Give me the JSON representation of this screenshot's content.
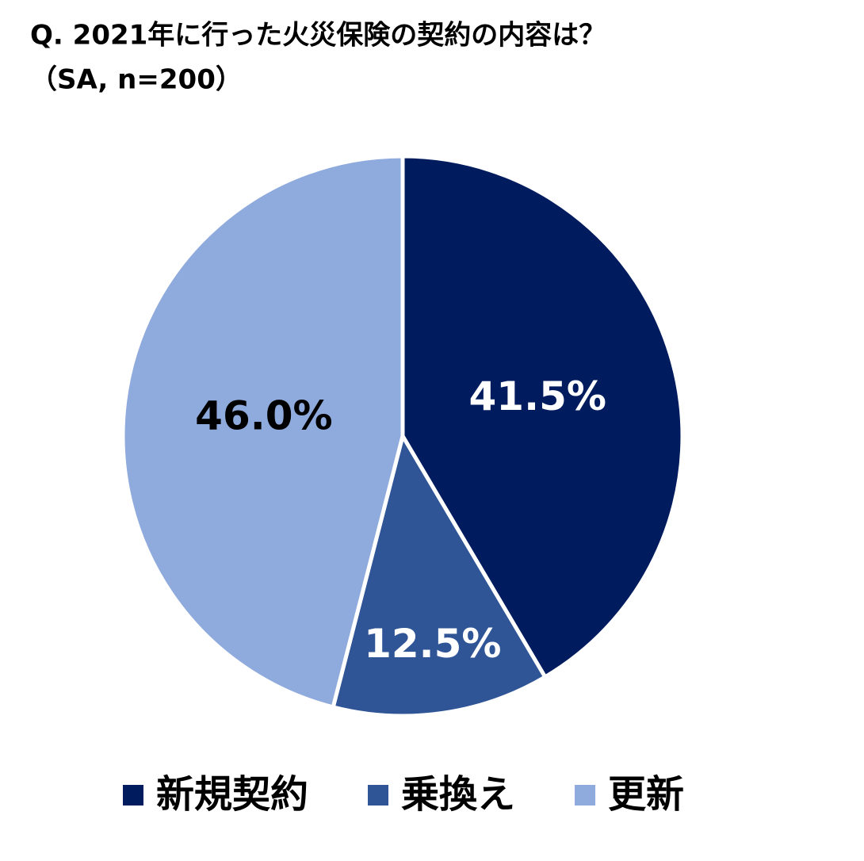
{
  "chart_data": {
    "type": "pie",
    "title": "Q. 2021年に行った火災保険の契約の内容は？",
    "subtitle": "（SA, n=200）",
    "categories": [
      "新規契約",
      "乗換え",
      "更新"
    ],
    "values": [
      41.5,
      12.5,
      46.0
    ],
    "value_labels": [
      "41.5%",
      "12.5%",
      "46.0%"
    ],
    "colors": [
      "#001c5e",
      "#2f5597",
      "#8faadc"
    ],
    "legend": "bottom"
  }
}
